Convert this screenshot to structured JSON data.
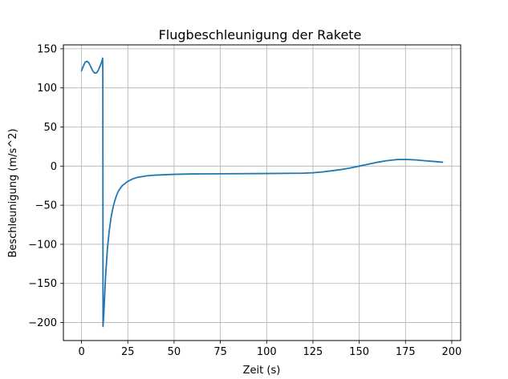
{
  "chart_data": {
    "type": "line",
    "title": "Flugbeschleunigung der Rakete",
    "xlabel": "Zeit (s)",
    "ylabel": "Beschleunigung (m/s^2)",
    "xlim": [
      -9.8,
      204.8
    ],
    "ylim": [
      -223,
      155
    ],
    "xticks": [
      0,
      25,
      50,
      75,
      100,
      125,
      150,
      175,
      200
    ],
    "yticks": [
      -200,
      -150,
      -100,
      -50,
      0,
      50,
      100,
      150
    ],
    "xtick_labels": [
      "0",
      "25",
      "50",
      "75",
      "100",
      "125",
      "150",
      "175",
      "200"
    ],
    "ytick_labels": [
      "−200",
      "−150",
      "−100",
      "−50",
      "0",
      "50",
      "100",
      "150"
    ],
    "grid": true,
    "series": [
      {
        "color": "#1f77b4",
        "x": [
          0,
          1,
          2,
          3,
          4,
          5,
          6,
          7,
          8,
          9,
          10,
          11,
          11.4,
          11.5,
          11.6,
          12,
          13,
          14,
          15,
          16,
          17,
          18,
          19,
          20,
          22,
          25,
          28,
          30,
          35,
          40,
          50,
          60,
          75,
          100,
          120,
          125,
          130,
          135,
          140,
          145,
          150,
          155,
          160,
          165,
          170,
          175,
          180,
          185,
          190,
          195
        ],
        "y": [
          122,
          128,
          133,
          134,
          132,
          127,
          122,
          119,
          119,
          122,
          128,
          134,
          138,
          120,
          -205,
          -190,
          -140,
          -105,
          -82,
          -65,
          -53,
          -44,
          -37,
          -31.5,
          -25,
          -19.5,
          -16,
          -14.5,
          -12.5,
          -11.5,
          -10.5,
          -10,
          -9.8,
          -9.5,
          -9,
          -8.5,
          -7.5,
          -6,
          -4.5,
          -2.5,
          0,
          2.5,
          5,
          7,
          8.3,
          8.5,
          8,
          7,
          6,
          5
        ]
      }
    ]
  }
}
